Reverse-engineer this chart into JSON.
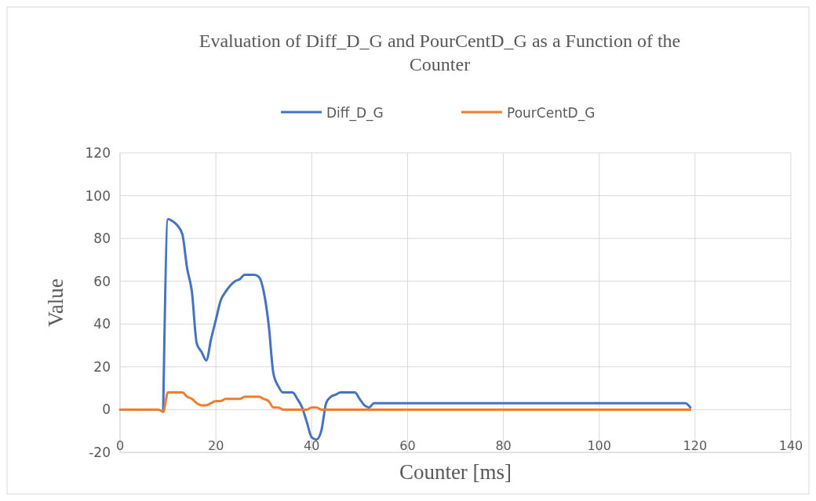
{
  "chart_data": {
    "type": "line",
    "title": "Evaluation of Diff_D_G and PourCentD_G as a Function of the Counter",
    "xlabel": "Counter [ms]",
    "ylabel": "Value",
    "x": [
      0,
      1,
      2,
      3,
      4,
      5,
      6,
      7,
      8,
      9,
      10,
      11,
      12,
      13,
      14,
      15,
      16,
      17,
      18,
      19,
      20,
      21,
      22,
      23,
      24,
      25,
      26,
      27,
      28,
      29,
      30,
      31,
      32,
      33,
      34,
      35,
      36,
      37,
      38,
      39,
      40,
      41,
      42,
      43,
      44,
      45,
      46,
      47,
      48,
      49,
      50,
      51,
      52,
      53,
      54,
      55,
      56,
      57,
      58,
      59,
      60,
      61,
      62,
      63,
      64,
      65,
      66,
      67,
      68,
      69,
      70,
      71,
      72,
      73,
      74,
      75,
      76,
      77,
      78,
      79,
      80,
      81,
      82,
      83,
      84,
      85,
      86,
      87,
      88,
      89,
      90,
      91,
      92,
      93,
      94,
      95,
      96,
      97,
      98,
      99,
      100,
      101,
      102,
      103,
      104,
      105,
      106,
      107,
      108,
      109,
      110,
      111,
      112,
      113,
      114,
      115,
      116,
      117,
      118,
      119
    ],
    "series": [
      {
        "name": "Diff_D_G",
        "color": "#4472c4",
        "values": [
          null,
          null,
          null,
          null,
          null,
          null,
          null,
          null,
          null,
          -1,
          89,
          88,
          86,
          82,
          66,
          55,
          31,
          27,
          23,
          33,
          42,
          51,
          55,
          58,
          60,
          61,
          63,
          63,
          63,
          62,
          55,
          40,
          17,
          11,
          8,
          8,
          8,
          5,
          1,
          -6,
          -13,
          -14,
          -10,
          3,
          6,
          7,
          8,
          8,
          8,
          8,
          5,
          2,
          1,
          3,
          3,
          3,
          3,
          3,
          3,
          3,
          3,
          3,
          3,
          3,
          3,
          3,
          3,
          3,
          3,
          3,
          3,
          3,
          3,
          3,
          3,
          3,
          3,
          3,
          3,
          3,
          3,
          3,
          3,
          3,
          3,
          3,
          3,
          3,
          3,
          3,
          3,
          3,
          3,
          3,
          3,
          3,
          3,
          3,
          3,
          3,
          3,
          3,
          3,
          3,
          3,
          3,
          3,
          3,
          3,
          3,
          3,
          3,
          3,
          3,
          3,
          3,
          3,
          3,
          3,
          1
        ]
      },
      {
        "name": "PourCentD_G",
        "color": "#ed7d31",
        "values": [
          0,
          0,
          0,
          0,
          0,
          0,
          0,
          0,
          0,
          -1,
          8,
          8,
          8,
          8,
          6,
          5,
          3,
          2,
          2,
          3,
          4,
          4,
          5,
          5,
          5,
          5,
          6,
          6,
          6,
          6,
          5,
          4,
          1,
          1,
          0,
          0,
          0,
          0,
          0,
          0,
          1,
          1,
          0,
          0,
          0,
          0,
          0,
          0,
          0,
          0,
          0,
          0,
          0,
          0,
          0,
          0,
          0,
          0,
          0,
          0,
          0,
          0,
          0,
          0,
          0,
          0,
          0,
          0,
          0,
          0,
          0,
          0,
          0,
          0,
          0,
          0,
          0,
          0,
          0,
          0,
          0,
          0,
          0,
          0,
          0,
          0,
          0,
          0,
          0,
          0,
          0,
          0,
          0,
          0,
          0,
          0,
          0,
          0,
          0,
          0,
          0,
          0,
          0,
          0,
          0,
          0,
          0,
          0,
          0,
          0,
          0,
          0,
          0,
          0,
          0,
          0,
          0,
          0,
          0,
          0
        ]
      }
    ],
    "xlim": [
      0,
      140
    ],
    "xticks": [
      0,
      20,
      40,
      60,
      80,
      100,
      120,
      140
    ],
    "ylim": [
      -20,
      120
    ],
    "yticks": [
      -20,
      0,
      20,
      40,
      60,
      80,
      100,
      120
    ],
    "grid": true,
    "legend": "top",
    "marker": "none",
    "line_style": "solid"
  }
}
